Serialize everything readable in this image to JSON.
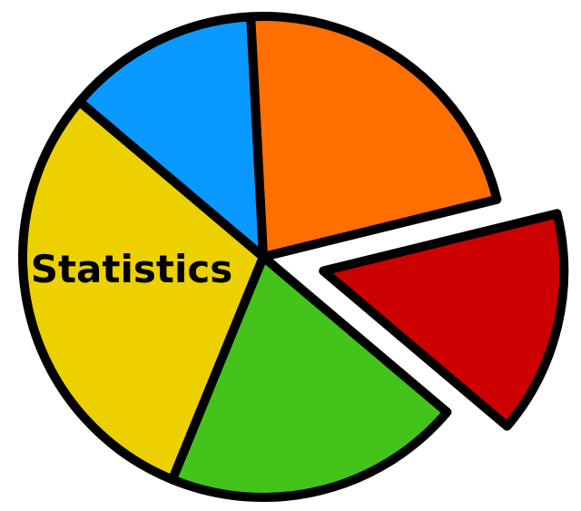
{
  "chart_data": {
    "type": "pie",
    "slices": [
      {
        "label": "",
        "value": 22,
        "color": "#FF6F00",
        "exploded": false
      },
      {
        "label": "",
        "value": 15,
        "color": "#CC0000",
        "exploded": true
      },
      {
        "label": "",
        "value": 20,
        "color": "#44C41A",
        "exploded": false
      },
      {
        "label": "Statistics",
        "value": 30,
        "color": "#EDD000",
        "exploded": false
      },
      {
        "label": "",
        "value": 13,
        "color": "#0A99FF",
        "exploded": false
      }
    ]
  }
}
